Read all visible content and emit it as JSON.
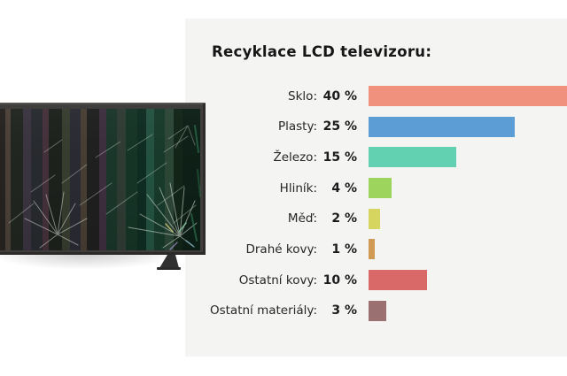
{
  "panel": {
    "title": "Recyklace LCD televizoru:"
  },
  "chart_data": {
    "type": "bar",
    "orientation": "horizontal",
    "title": "Recyklace LCD televizoru:",
    "unit": "%",
    "categories": [
      "Sklo",
      "Plasty",
      "Železo",
      "Hliník",
      "Měď",
      "Drahé kovy",
      "Ostatní kovy",
      "Ostatní materiály"
    ],
    "values": [
      40,
      25,
      15,
      4,
      2,
      1,
      10,
      3
    ],
    "xlim": [
      0,
      42
    ],
    "grid": false,
    "legend": false,
    "panel_background": "#f4f4f3",
    "rows": [
      {
        "label": "Sklo:",
        "value": 40,
        "value_text": "40 %",
        "color": "#f0917d"
      },
      {
        "label": "Plasty:",
        "value": 25,
        "value_text": "25 %",
        "color": "#5d9dd5"
      },
      {
        "label": "Železo:",
        "value": 15,
        "value_text": "15 %",
        "color": "#62d1b2"
      },
      {
        "label": "Hliník:",
        "value": 4,
        "value_text": "4 %",
        "color": "#9cd45e"
      },
      {
        "label": "Měď:",
        "value": 2,
        "value_text": "2 %",
        "color": "#d5d55f"
      },
      {
        "label": "Drahé kovy:",
        "value": 1,
        "value_text": "1 %",
        "color": "#d09a55"
      },
      {
        "label": "Ostatní kovy:",
        "value": 10,
        "value_text": "10 %",
        "color": "#d96868"
      },
      {
        "label": "Ostatní materiály:",
        "value": 3,
        "value_text": "3 %",
        "color": "#9a7070"
      }
    ]
  }
}
